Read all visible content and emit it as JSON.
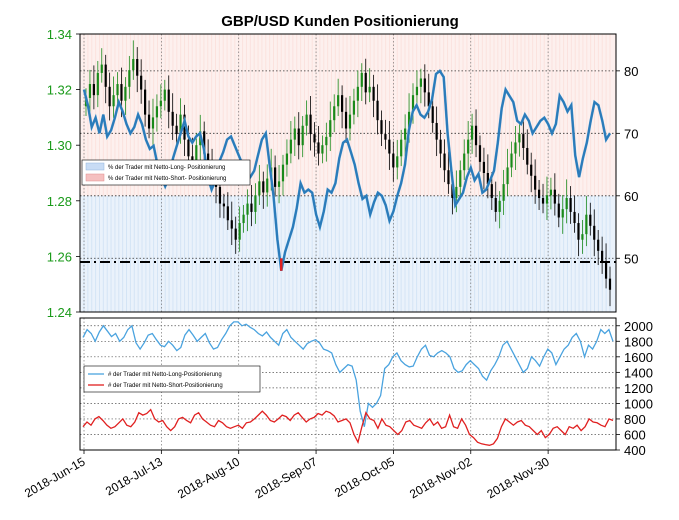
{
  "chart_data": [
    {
      "type": "candlestick_with_line",
      "title": "GBP/USD Kunden Positionierung",
      "left_axis": {
        "ylim": [
          1.24,
          1.34
        ],
        "ticks": [
          1.24,
          1.26,
          1.28,
          1.3,
          1.32,
          1.34
        ],
        "tick_labels": [
          "1.24",
          "1.26",
          "1.28",
          "1.30",
          "1.32",
          "1.34"
        ],
        "color": "#1a9a1a"
      },
      "right_axis": {
        "ylim": [
          41.4,
          85.9
        ],
        "ticks": [
          50,
          60,
          70,
          80
        ],
        "tick_labels": [
          "50",
          "60",
          "70",
          "80"
        ]
      },
      "legend": {
        "position": "upper-left",
        "entries": [
          {
            "label": "% der Trader mit Netto-Long- Positionierung",
            "color": "#c8dcf5"
          },
          {
            "label": "% der Trader mit Netto-Short- Positionierung",
            "color": "#f5c0c0"
          }
        ]
      },
      "reference_line": {
        "value": 1.258,
        "style": "dash-dot",
        "color": "#000000"
      },
      "line_series": {
        "name": "",
        "axis": "right",
        "color": "#2b7bb9",
        "values": [
          77.0,
          74.5,
          71.0,
          72.5,
          70.0,
          73.0,
          69.5,
          70.5,
          72.5,
          75.0,
          73.5,
          71.5,
          70.0,
          71.0,
          73.0,
          71.5,
          69.0,
          67.5,
          68.0,
          65.0,
          63.0,
          61.5,
          63.0,
          66.0,
          68.0,
          70.0,
          72.0,
          69.5,
          68.5,
          69.5,
          70.0,
          67.5,
          63.0,
          61.0,
          62.5,
          65.5,
          67.0,
          69.0,
          69.5,
          68.0,
          66.5,
          65.0,
          63.5,
          63.0,
          64.0,
          66.5,
          69.0,
          70.0,
          65.0,
          60.0,
          53.0,
          48.0,
          51.0,
          53.0,
          55.0,
          58.0,
          62.0,
          60.5,
          61.0,
          60.5,
          57.0,
          55.0,
          57.5,
          61.0,
          60.5,
          62.0,
          66.0,
          68.5,
          69.0,
          67.0,
          65.0,
          62.0,
          59.5,
          60.0,
          57.0,
          59.0,
          60.5,
          60.0,
          58.5,
          56.0,
          57.5,
          60.0,
          62.0,
          65.0,
          70.5,
          73.5,
          74.5,
          73.0,
          72.5,
          73.5,
          75.5,
          79.5,
          80.0,
          79.0,
          70.0,
          64.0,
          58.5,
          59.5,
          60.5,
          63.0,
          64.5,
          62.5,
          63.5,
          60.5,
          61.0,
          62.5,
          64.0,
          68.5,
          74.0,
          77.0,
          76.0,
          75.0,
          72.0,
          71.5,
          73.0,
          72.0,
          70.0,
          71.0,
          72.0,
          72.5,
          71.5,
          70.0,
          71.5,
          76.0,
          75.0,
          73.5,
          74.5,
          66.5,
          63.0,
          66.0,
          68.5,
          72.0,
          75.0,
          74.5,
          72.0,
          69.0,
          70.0
        ]
      },
      "candles": {
        "axis": "left",
        "up_color": "#1a8a1a",
        "down_color": "#000000",
        "count": 134,
        "note_values": "OHLC from GBP/USD daily closes"
      },
      "x_ticks": {
        "labels": [
          "2018-Jun-15",
          "2018-Jul-13",
          "2018-Aug-10",
          "2018-Sep-07",
          "2018-Oct-05",
          "2018-Nov-02",
          "2018-Nov-30"
        ],
        "index": [
          0,
          20,
          40,
          60,
          80,
          100,
          120
        ]
      }
    },
    {
      "type": "line",
      "y_axis": {
        "ylim": [
          400,
          2100
        ],
        "ticks": [
          400,
          600,
          800,
          1000,
          1200,
          1400,
          1600,
          1800,
          2000
        ],
        "tick_labels": [
          "400",
          "600",
          "800",
          "1000",
          "1200",
          "1400",
          "1600",
          "1800",
          "2000"
        ]
      },
      "legend": {
        "position": "middle-left",
        "entries": [
          {
            "label": "# der Trader mit Netto-Long-Positionierung",
            "color": "#4aa3df"
          },
          {
            "label": "# der Trader mit Netto-Short-Positionierung",
            "color": "#e02020"
          }
        ]
      },
      "series": [
        {
          "name": "# der Trader mit Netto-Long-Positionierung",
          "color": "#4aa3df",
          "values": [
            1850,
            1950,
            1900,
            1800,
            1920,
            2000,
            1930,
            1860,
            1900,
            1800,
            1850,
            1950,
            2000,
            1780,
            1700,
            1780,
            1880,
            1900,
            1820,
            1750,
            1730,
            1800,
            1750,
            1680,
            1720,
            1880,
            1950,
            1880,
            1800,
            1850,
            1900,
            1780,
            1700,
            1720,
            1820,
            1900,
            2000,
            2050,
            2050,
            2000,
            2020,
            1980,
            1950,
            1900,
            1870,
            1920,
            1850,
            1800,
            1750,
            1900,
            1950,
            1850,
            1800,
            1750,
            1700,
            1770,
            1800,
            1820,
            1780,
            1700,
            1680,
            1650,
            1500,
            1400,
            1450,
            1500,
            1480,
            1300,
            900,
            700,
            1000,
            950,
            1000,
            1100,
            1450,
            1500,
            1600,
            1650,
            1550,
            1500,
            1470,
            1480,
            1600,
            1700,
            1750,
            1620,
            1600,
            1650,
            1680,
            1650,
            1600,
            1450,
            1400,
            1420,
            1500,
            1550,
            1500,
            1450,
            1350,
            1300,
            1420,
            1500,
            1600,
            1750,
            1800,
            1700,
            1600,
            1500,
            1400,
            1450,
            1600,
            1550,
            1480,
            1600,
            1700,
            1650,
            1500,
            1600,
            1700,
            1750,
            1850,
            1900,
            1800,
            1600,
            1750,
            1700,
            1800,
            1950,
            1900,
            1950,
            1800
          ]
        },
        {
          "name": "# der Trader mit Netto-Short-Positionierung",
          "color": "#e02020",
          "values": [
            700,
            760,
            720,
            800,
            830,
            780,
            720,
            680,
            700,
            750,
            800,
            720,
            700,
            760,
            880,
            850,
            870,
            920,
            800,
            760,
            780,
            700,
            650,
            700,
            800,
            820,
            780,
            750,
            850,
            880,
            800,
            760,
            720,
            700,
            780,
            750,
            700,
            680,
            700,
            720,
            680,
            750,
            760,
            800,
            850,
            900,
            850,
            780,
            760,
            800,
            850,
            830,
            780,
            850,
            880,
            820,
            760,
            800,
            820,
            870,
            850,
            900,
            880,
            840,
            760,
            780,
            800,
            750,
            600,
            500,
            700,
            880,
            800,
            780,
            680,
            800,
            720,
            700,
            650,
            600,
            650,
            760,
            780,
            720,
            700,
            680,
            750,
            800,
            720,
            760,
            680,
            700,
            850,
            700,
            680,
            800,
            720,
            600,
            560,
            500,
            480,
            470,
            460,
            480,
            550,
            700,
            800,
            760,
            720,
            760,
            780,
            720,
            700,
            650,
            600,
            650,
            560,
            600,
            680,
            700,
            650,
            600,
            700,
            680,
            720,
            650,
            700,
            800,
            760,
            750,
            720,
            700,
            800,
            780
          ]
        }
      ]
    }
  ]
}
